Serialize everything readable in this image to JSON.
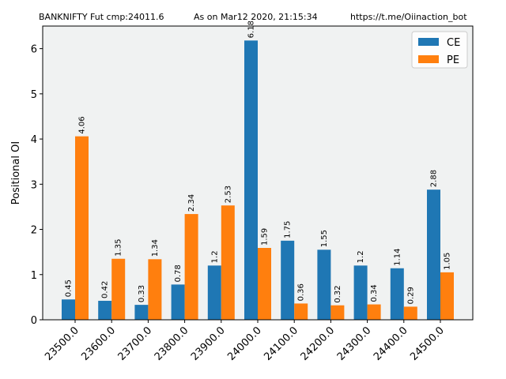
{
  "header": {
    "left": "BANKNIFTY Fut cmp:24011.6",
    "center": "As on Mar12 2020, 21:15:34",
    "right": "https://t.me/Oiinaction_bot"
  },
  "chart_data": {
    "type": "bar",
    "title": "BANKNIFTY Fut cmp:24011.6        As on Mar12 2020, 21:15:34        https://t.me/Oiinaction_bot",
    "xlabel": "",
    "ylabel": "Positional OI",
    "ylim": [
      0,
      6.5
    ],
    "yticks": [
      0,
      1,
      2,
      3,
      4,
      5,
      6
    ],
    "categories": [
      "23500.0",
      "23600.0",
      "23700.0",
      "23800.0",
      "23900.0",
      "24000.0",
      "24100.0",
      "24200.0",
      "24300.0",
      "24400.0",
      "24500.0"
    ],
    "series": [
      {
        "name": "CE",
        "color": "#1f77b4",
        "values": [
          0.45,
          0.42,
          0.33,
          0.78,
          1.2,
          6.18,
          1.75,
          1.55,
          1.2,
          1.14,
          2.88
        ],
        "labels": [
          "0.45",
          "0.42",
          "0.33",
          "0.78",
          "1.2",
          "6.18",
          "1.75",
          "1.55",
          "1.2",
          "1.14",
          "2.88"
        ]
      },
      {
        "name": "PE",
        "color": "#ff7f0e",
        "values": [
          4.06,
          1.35,
          1.34,
          2.34,
          2.53,
          1.59,
          0.36,
          0.32,
          0.34,
          0.29,
          1.05
        ],
        "labels": [
          "4.06",
          "1.35",
          "1.34",
          "2.34",
          "2.53",
          "1.59",
          "0.36",
          "0.32",
          "0.34",
          "0.29",
          "1.05"
        ]
      }
    ],
    "legend_position": "top-right",
    "plot_background": "#f0f2f2"
  }
}
